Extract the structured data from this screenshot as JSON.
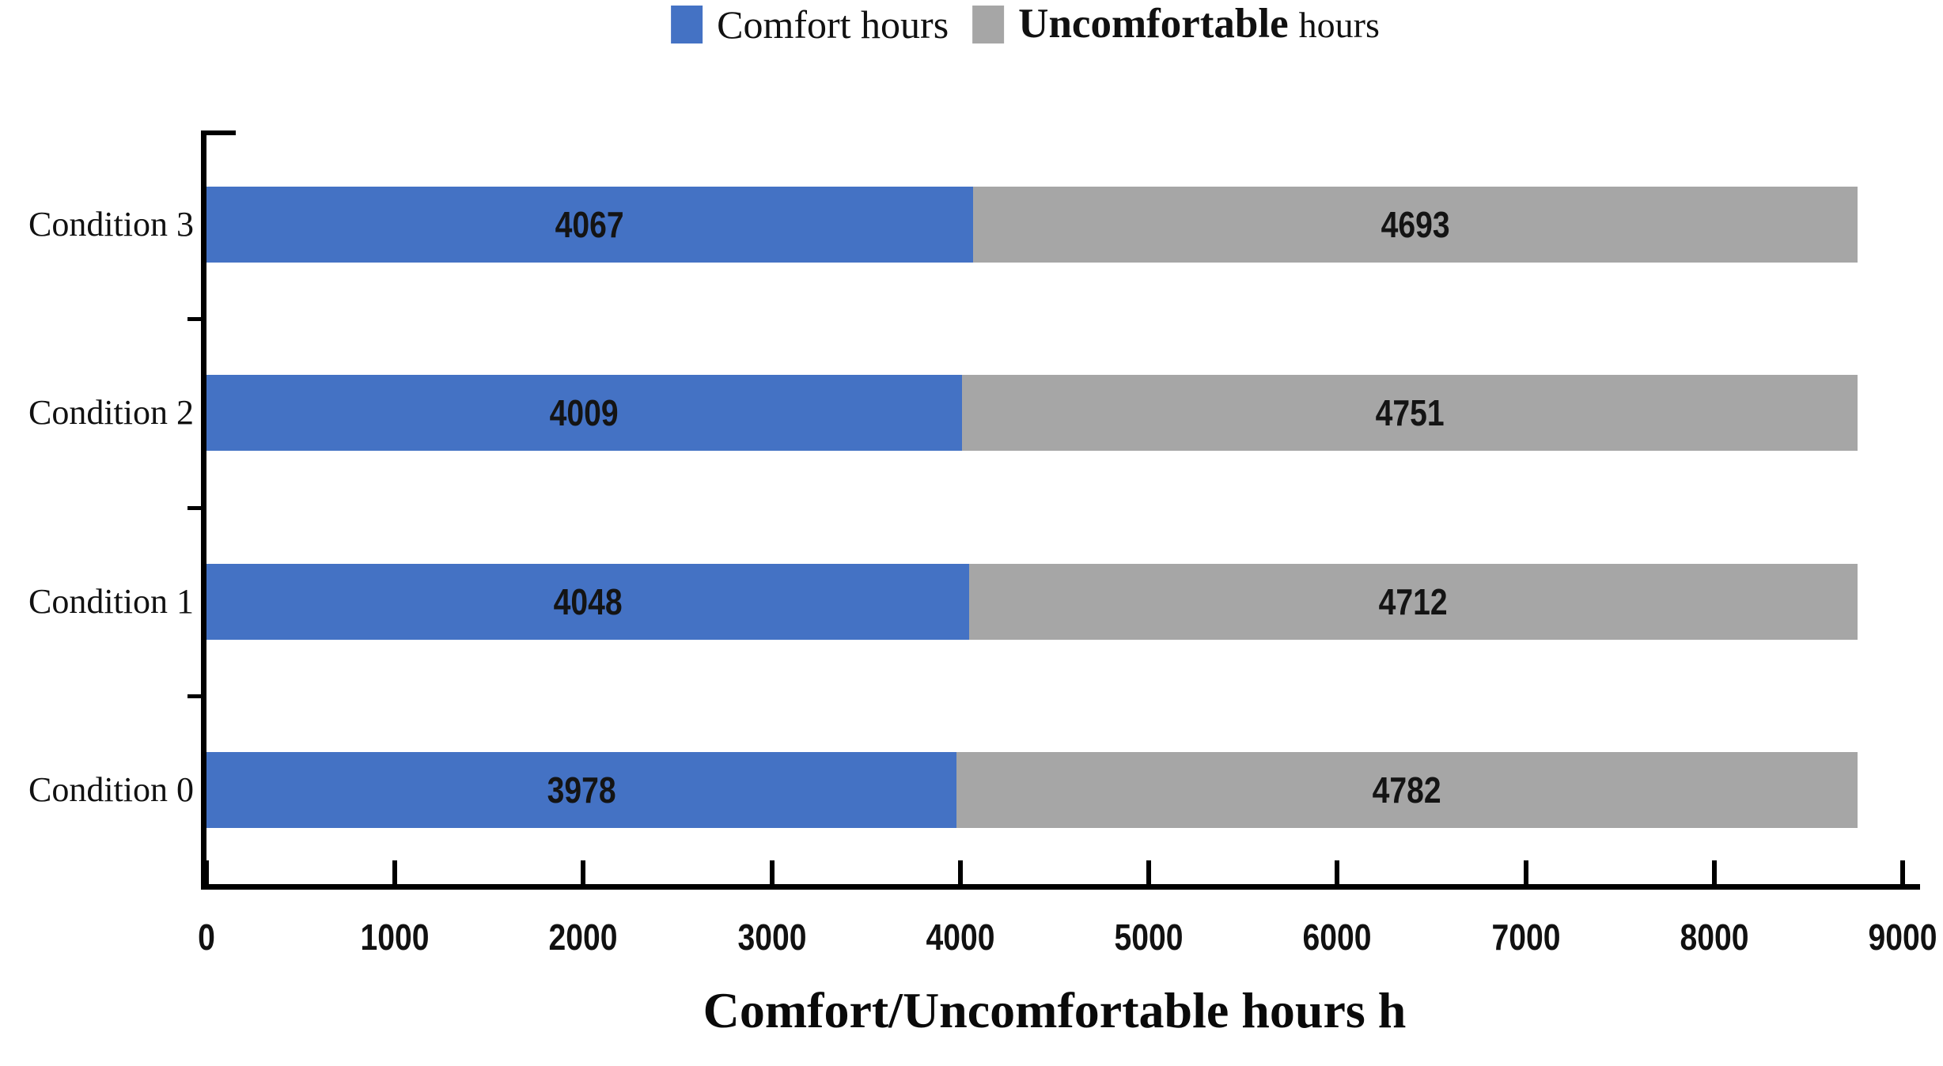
{
  "legend": {
    "position": "top-center",
    "items": [
      {
        "label": "Comfort hours",
        "color": "#4472C4"
      },
      {
        "parts": [
          "Uncomfortable",
          "hours"
        ],
        "color": "#A6A6A6"
      }
    ]
  },
  "chart_data": {
    "type": "bar",
    "orientation": "horizontal",
    "stacked": true,
    "categories": [
      "Condition 3",
      "Condition 2",
      "Condition 1",
      "Condition 0"
    ],
    "categories_display_order": "top-to-bottom",
    "series": [
      {
        "name": "Comfort hours",
        "color": "#4472C4",
        "values": [
          4067,
          4009,
          4048,
          3978
        ]
      },
      {
        "name": "Uncomfortable hours",
        "color": "#A6A6A6",
        "values": [
          4693,
          4751,
          4712,
          4782
        ]
      }
    ],
    "bar_value_labels": true,
    "xlabel": "Comfort/Uncomfortable hours h",
    "ylabel": "",
    "xlim": [
      0,
      9000
    ],
    "xticks": [
      0,
      1000,
      2000,
      3000,
      4000,
      5000,
      6000,
      7000,
      8000,
      9000
    ],
    "grid": false,
    "axis_color": "#000000",
    "text_color": "#111111",
    "background_color": "#FFFFFF"
  }
}
